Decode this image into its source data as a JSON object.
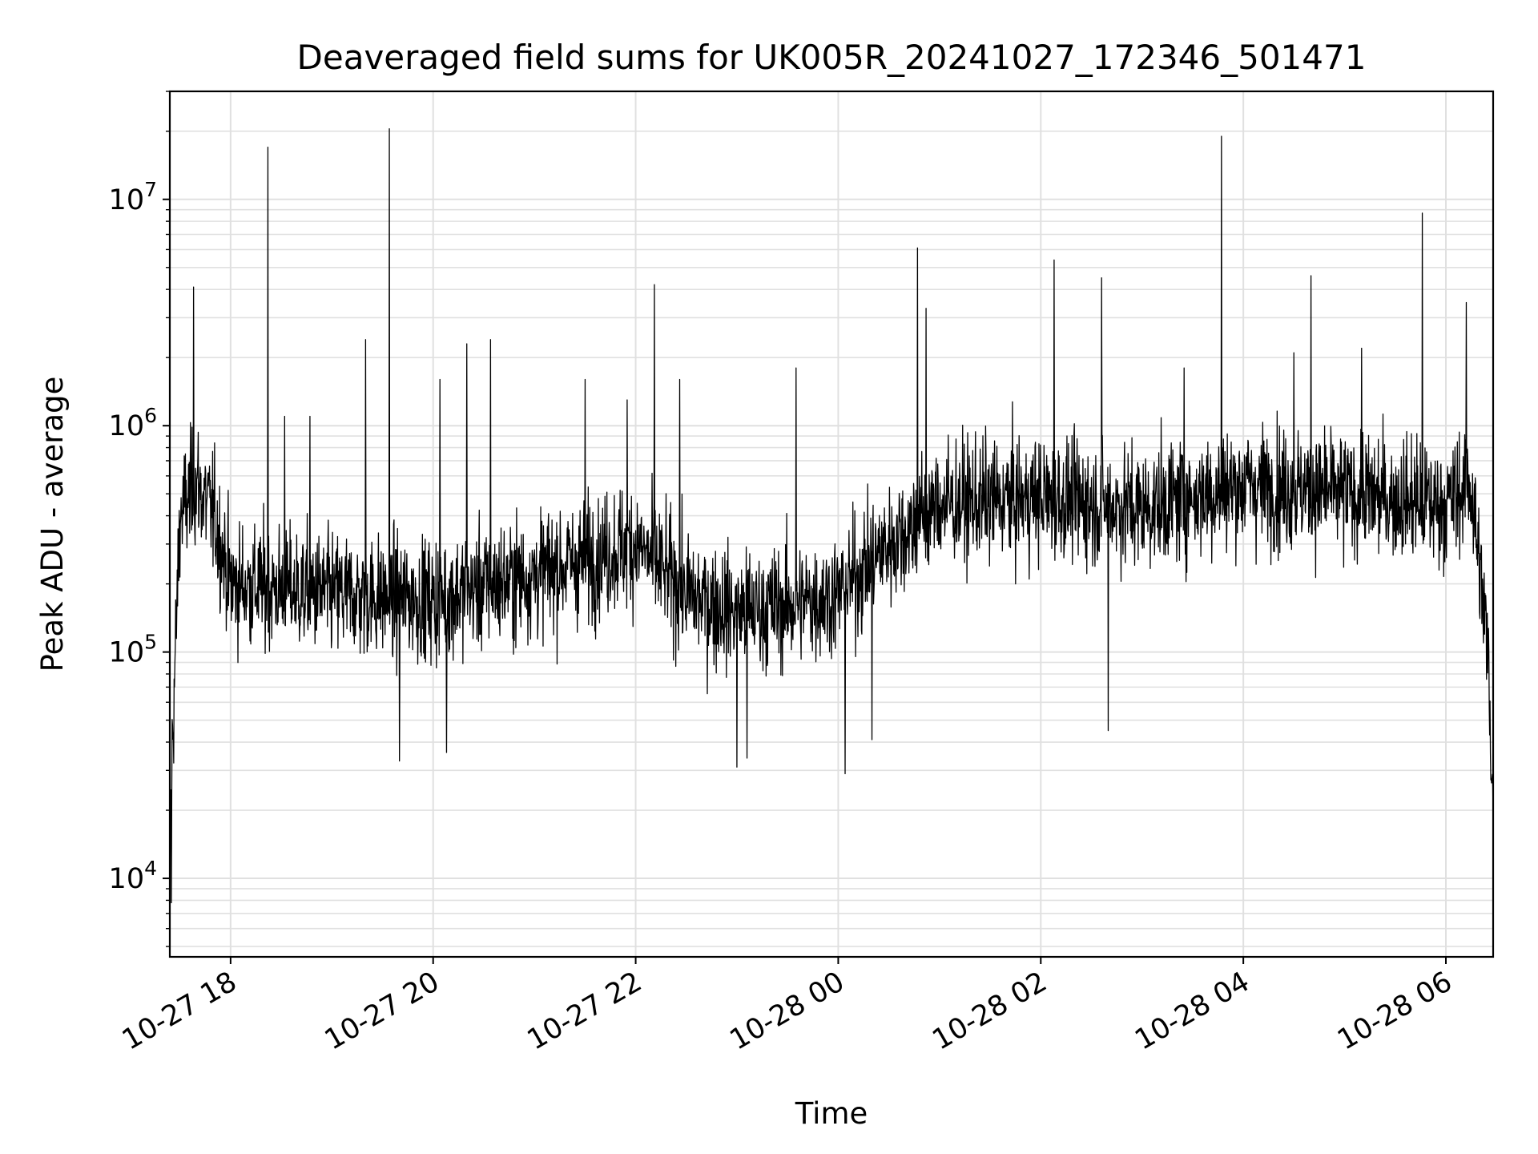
{
  "chart_data": {
    "type": "line",
    "title": "Deaveraged field sums for UK005R_20241027_172346_501471",
    "xlabel": "Time",
    "ylabel": "Peak ADU - average",
    "yscale": "log",
    "ylim": [
      4500,
      30000000
    ],
    "xlim": [
      "2024-10-27 17:24",
      "2024-10-28 06:28"
    ],
    "grid": true,
    "grid_minor": true,
    "line_color": "#000000",
    "grid_color": "#e0e0e0",
    "x_ticks": [
      {
        "value": "2024-10-27 18:00",
        "label": "10-27 18"
      },
      {
        "value": "2024-10-27 20:00",
        "label": "10-27 20"
      },
      {
        "value": "2024-10-27 22:00",
        "label": "10-27 22"
      },
      {
        "value": "2024-10-28 00:00",
        "label": "10-28 00"
      },
      {
        "value": "2024-10-28 02:00",
        "label": "10-28 02"
      },
      {
        "value": "2024-10-28 04:00",
        "label": "10-28 04"
      },
      {
        "value": "2024-10-28 06:00",
        "label": "10-28 06"
      }
    ],
    "y_ticks": [
      {
        "value": 10000,
        "base": "10",
        "exp": "4"
      },
      {
        "value": 100000,
        "base": "10",
        "exp": "5"
      },
      {
        "value": 1000000,
        "base": "10",
        "exp": "6"
      },
      {
        "value": 10000000,
        "base": "10",
        "exp": "7"
      }
    ],
    "series": [
      {
        "baseline": [
          [
            "2024-10-27 17:24",
            9000
          ],
          [
            "2024-10-27 17:25",
            30000
          ],
          [
            "2024-10-27 17:30",
            400000
          ],
          [
            "2024-10-27 17:40",
            550000
          ],
          [
            "2024-10-27 17:50",
            400000
          ],
          [
            "2024-10-27 18:00",
            200000
          ],
          [
            "2024-10-27 19:00",
            180000
          ],
          [
            "2024-10-27 20:00",
            170000
          ],
          [
            "2024-10-27 21:00",
            220000
          ],
          [
            "2024-10-27 22:00",
            300000
          ],
          [
            "2024-10-27 22:30",
            180000
          ],
          [
            "2024-10-27 23:00",
            150000
          ],
          [
            "2024-10-27 23:30",
            160000
          ],
          [
            "2024-10-28 00:00",
            180000
          ],
          [
            "2024-10-28 00:30",
            300000
          ],
          [
            "2024-10-28 01:00",
            450000
          ],
          [
            "2024-10-28 02:00",
            480000
          ],
          [
            "2024-10-28 03:00",
            430000
          ],
          [
            "2024-10-28 04:00",
            550000
          ],
          [
            "2024-10-28 05:00",
            500000
          ],
          [
            "2024-10-28 06:00",
            450000
          ],
          [
            "2024-10-28 06:15",
            550000
          ],
          [
            "2024-10-28 06:25",
            100000
          ],
          [
            "2024-10-28 06:28",
            20000
          ]
        ],
        "spikes": [
          [
            "2024-10-27 17:38",
            4100000
          ],
          [
            "2024-10-27 18:22",
            17000000
          ],
          [
            "2024-10-27 18:32",
            1100000
          ],
          [
            "2024-10-27 18:47",
            1100000
          ],
          [
            "2024-10-27 19:20",
            2400000
          ],
          [
            "2024-10-27 19:34",
            20500000
          ],
          [
            "2024-10-27 20:04",
            1600000
          ],
          [
            "2024-10-27 20:20",
            2300000
          ],
          [
            "2024-10-27 20:34",
            2400000
          ],
          [
            "2024-10-27 21:30",
            1600000
          ],
          [
            "2024-10-27 21:55",
            1300000
          ],
          [
            "2024-10-27 22:11",
            4200000
          ],
          [
            "2024-10-27 22:26",
            1600000
          ],
          [
            "2024-10-27 23:35",
            1800000
          ],
          [
            "2024-10-28 00:47",
            6100000
          ],
          [
            "2024-10-28 00:52",
            3300000
          ],
          [
            "2024-10-28 02:08",
            5400000
          ],
          [
            "2024-10-28 02:36",
            4500000
          ],
          [
            "2024-10-28 03:25",
            1800000
          ],
          [
            "2024-10-28 03:47",
            19000000
          ],
          [
            "2024-10-28 04:40",
            4600000
          ],
          [
            "2024-10-28 04:30",
            2100000
          ],
          [
            "2024-10-28 05:10",
            2200000
          ],
          [
            "2024-10-28 05:46",
            8700000
          ],
          [
            "2024-10-28 06:12",
            3500000
          ]
        ],
        "dips": [
          [
            "2024-10-27 17:24",
            6200
          ],
          [
            "2024-10-27 17:25",
            7800
          ],
          [
            "2024-10-27 19:40",
            33000
          ],
          [
            "2024-10-27 20:08",
            36000
          ],
          [
            "2024-10-27 23:00",
            31000
          ],
          [
            "2024-10-27 23:06",
            34000
          ],
          [
            "2024-10-28 00:04",
            29000
          ],
          [
            "2024-10-28 00:20",
            41000
          ],
          [
            "2024-10-28 02:40",
            45000
          ],
          [
            "2024-10-28 06:28",
            18000
          ]
        ]
      }
    ]
  }
}
